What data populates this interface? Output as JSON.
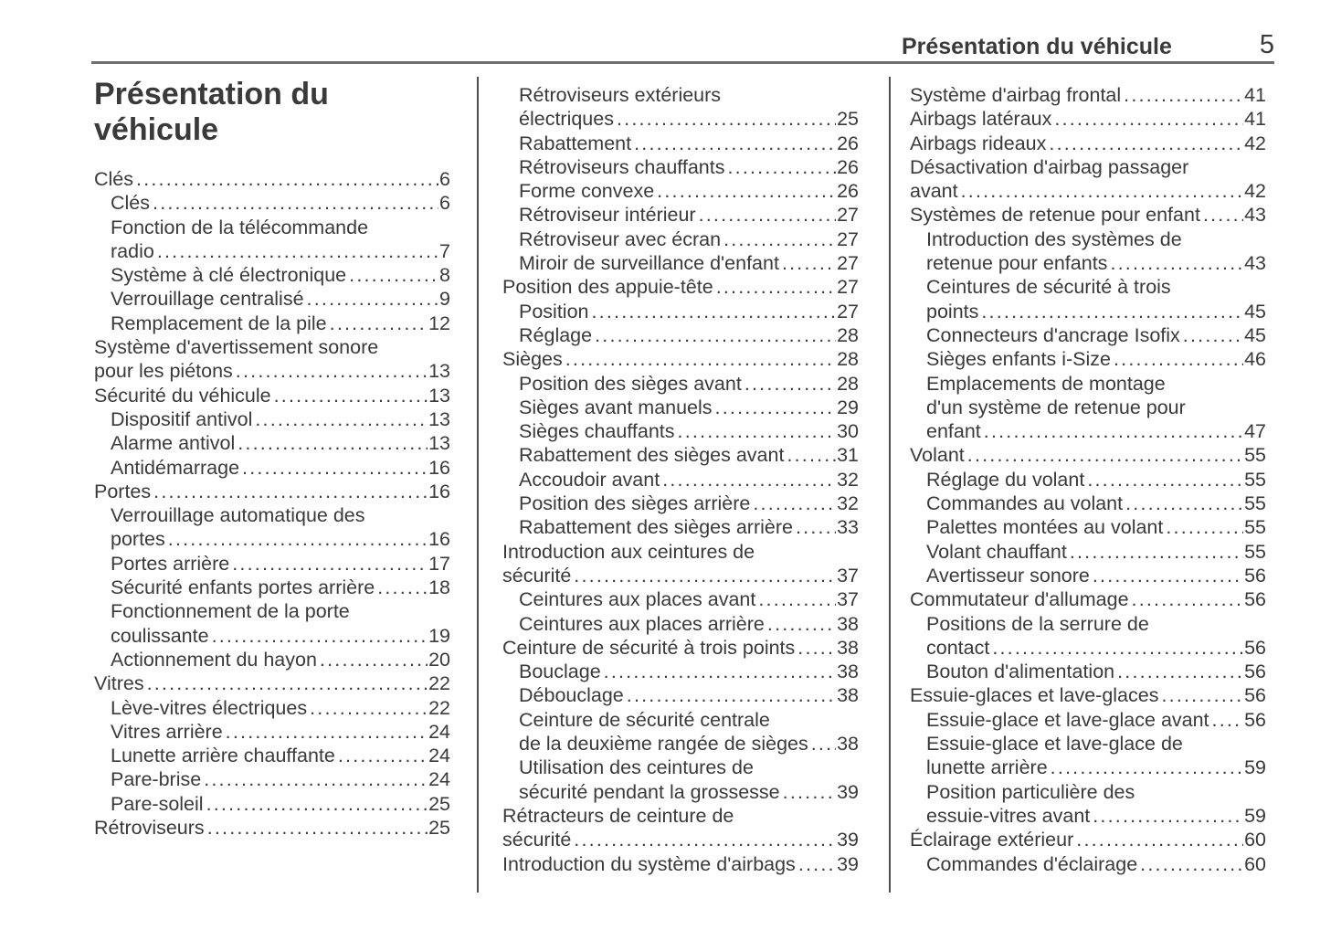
{
  "header": {
    "section_title": "Présentation du véhicule",
    "page_number": "5"
  },
  "chapter": {
    "title": "Présentation du véhicule"
  },
  "colors": {
    "text": "#3a3a3a",
    "header_rule": "#6f6f6f",
    "column_divider": "#4e4e4e",
    "background": "#ffffff"
  },
  "toc": {
    "columns": [
      {
        "entries": [
          {
            "lines": [
              "Clés"
            ],
            "page": "6",
            "level": 0
          },
          {
            "lines": [
              "Clés"
            ],
            "page": "6",
            "level": 1
          },
          {
            "lines": [
              "Fonction de la télécommande",
              "radio"
            ],
            "page": "7",
            "level": 1
          },
          {
            "lines": [
              "Système à clé électronique"
            ],
            "page": "8",
            "level": 1
          },
          {
            "lines": [
              "Verrouillage centralisé"
            ],
            "page": "9",
            "level": 1
          },
          {
            "lines": [
              "Remplacement de la pile"
            ],
            "page": "12",
            "level": 1
          },
          {
            "lines": [
              "Système d'avertissement sonore",
              "pour les piétons"
            ],
            "page": "13",
            "level": 0
          },
          {
            "lines": [
              "Sécurité du véhicule"
            ],
            "page": "13",
            "level": 0
          },
          {
            "lines": [
              "Dispositif antivol"
            ],
            "page": "13",
            "level": 1
          },
          {
            "lines": [
              "Alarme antivol"
            ],
            "page": "13",
            "level": 1
          },
          {
            "lines": [
              "Antidémarrage"
            ],
            "page": "16",
            "level": 1
          },
          {
            "lines": [
              "Portes"
            ],
            "page": "16",
            "level": 0
          },
          {
            "lines": [
              "Verrouillage automatique des",
              "portes"
            ],
            "page": "16",
            "level": 1
          },
          {
            "lines": [
              "Portes arrière"
            ],
            "page": "17",
            "level": 1
          },
          {
            "lines": [
              "Sécurité enfants portes arrière"
            ],
            "page": "18",
            "level": 1
          },
          {
            "lines": [
              "Fonctionnement de la porte",
              "coulissante"
            ],
            "page": "19",
            "level": 1
          },
          {
            "lines": [
              "Actionnement du hayon"
            ],
            "page": "20",
            "level": 1
          },
          {
            "lines": [
              "Vitres"
            ],
            "page": "22",
            "level": 0
          },
          {
            "lines": [
              "Lève-vitres électriques"
            ],
            "page": "22",
            "level": 1
          },
          {
            "lines": [
              "Vitres arrière"
            ],
            "page": "24",
            "level": 1
          },
          {
            "lines": [
              "Lunette arrière chauffante"
            ],
            "page": "24",
            "level": 1
          },
          {
            "lines": [
              "Pare-brise"
            ],
            "page": "24",
            "level": 1
          },
          {
            "lines": [
              "Pare-soleil"
            ],
            "page": "25",
            "level": 1
          },
          {
            "lines": [
              "Rétroviseurs"
            ],
            "page": "25",
            "level": 0
          }
        ]
      },
      {
        "entries": [
          {
            "lines": [
              "Rétroviseurs extérieurs",
              "électriques"
            ],
            "page": "25",
            "level": 1
          },
          {
            "lines": [
              "Rabattement"
            ],
            "page": "26",
            "level": 1
          },
          {
            "lines": [
              "Rétroviseurs chauffants"
            ],
            "page": "26",
            "level": 1
          },
          {
            "lines": [
              "Forme convexe"
            ],
            "page": "26",
            "level": 1
          },
          {
            "lines": [
              "Rétroviseur intérieur"
            ],
            "page": "27",
            "level": 1
          },
          {
            "lines": [
              "Rétroviseur avec écran"
            ],
            "page": "27",
            "level": 1
          },
          {
            "lines": [
              "Miroir de surveillance d'enfant"
            ],
            "page": "27",
            "level": 1
          },
          {
            "lines": [
              "Position des appuie-tête"
            ],
            "page": "27",
            "level": 0
          },
          {
            "lines": [
              "Position"
            ],
            "page": "27",
            "level": 1
          },
          {
            "lines": [
              "Réglage"
            ],
            "page": "28",
            "level": 1
          },
          {
            "lines": [
              "Sièges"
            ],
            "page": "28",
            "level": 0
          },
          {
            "lines": [
              "Position des sièges avant"
            ],
            "page": "28",
            "level": 1
          },
          {
            "lines": [
              "Sièges avant manuels"
            ],
            "page": "29",
            "level": 1
          },
          {
            "lines": [
              "Sièges chauffants"
            ],
            "page": "30",
            "level": 1
          },
          {
            "lines": [
              "Rabattement des sièges avant"
            ],
            "page": "31",
            "level": 1
          },
          {
            "lines": [
              "Accoudoir avant"
            ],
            "page": "32",
            "level": 1
          },
          {
            "lines": [
              "Position des sièges arrière"
            ],
            "page": "32",
            "level": 1
          },
          {
            "lines": [
              "Rabattement des sièges arrière"
            ],
            "page": "33",
            "level": 1
          },
          {
            "lines": [
              "Introduction aux ceintures de",
              "sécurité"
            ],
            "page": "37",
            "level": 0
          },
          {
            "lines": [
              "Ceintures aux places avant"
            ],
            "page": "37",
            "level": 1
          },
          {
            "lines": [
              "Ceintures aux places arrière"
            ],
            "page": "38",
            "level": 1
          },
          {
            "lines": [
              "Ceinture de sécurité à trois points"
            ],
            "page": "38",
            "level": 0
          },
          {
            "lines": [
              "Bouclage"
            ],
            "page": "38",
            "level": 1
          },
          {
            "lines": [
              "Débouclage"
            ],
            "page": "38",
            "level": 1
          },
          {
            "lines": [
              "Ceinture de sécurité centrale",
              "de la deuxième rangée de sièges"
            ],
            "page": "38",
            "level": 1
          },
          {
            "lines": [
              "Utilisation des ceintures de",
              "sécurité pendant la grossesse"
            ],
            "page": "39",
            "level": 1
          },
          {
            "lines": [
              "Rétracteurs de ceinture de",
              "sécurité"
            ],
            "page": "39",
            "level": 0
          },
          {
            "lines": [
              "Introduction du système d'airbags"
            ],
            "page": "39",
            "level": 0
          }
        ]
      },
      {
        "entries": [
          {
            "lines": [
              "Système d'airbag frontal"
            ],
            "page": "41",
            "level": 0
          },
          {
            "lines": [
              "Airbags latéraux"
            ],
            "page": "41",
            "level": 0
          },
          {
            "lines": [
              "Airbags rideaux"
            ],
            "page": "42",
            "level": 0
          },
          {
            "lines": [
              "Désactivation d'airbag passager",
              "avant"
            ],
            "page": "42",
            "level": 0
          },
          {
            "lines": [
              "Systèmes de retenue pour enfant"
            ],
            "page": "43",
            "level": 0
          },
          {
            "lines": [
              "Introduction des systèmes de",
              "retenue pour enfants"
            ],
            "page": "43",
            "level": 1
          },
          {
            "lines": [
              "Ceintures de sécurité à trois",
              "points"
            ],
            "page": "45",
            "level": 1
          },
          {
            "lines": [
              "Connecteurs d'ancrage Isofix"
            ],
            "page": "45",
            "level": 1
          },
          {
            "lines": [
              "Sièges enfants i-Size"
            ],
            "page": "46",
            "level": 1
          },
          {
            "lines": [
              "Emplacements de montage",
              "d'un système de retenue pour",
              "enfant"
            ],
            "page": "47",
            "level": 1
          },
          {
            "lines": [
              "Volant"
            ],
            "page": "55",
            "level": 0
          },
          {
            "lines": [
              "Réglage du volant"
            ],
            "page": "55",
            "level": 1
          },
          {
            "lines": [
              "Commandes au volant"
            ],
            "page": "55",
            "level": 1
          },
          {
            "lines": [
              "Palettes montées au volant"
            ],
            "page": "55",
            "level": 1
          },
          {
            "lines": [
              "Volant chauffant"
            ],
            "page": "55",
            "level": 1
          },
          {
            "lines": [
              "Avertisseur sonore"
            ],
            "page": "56",
            "level": 1
          },
          {
            "lines": [
              "Commutateur d'allumage"
            ],
            "page": "56",
            "level": 0
          },
          {
            "lines": [
              "Positions de la serrure de",
              "contact"
            ],
            "page": "56",
            "level": 1
          },
          {
            "lines": [
              "Bouton d'alimentation"
            ],
            "page": "56",
            "level": 1
          },
          {
            "lines": [
              "Essuie-glaces et lave-glaces"
            ],
            "page": "56",
            "level": 0
          },
          {
            "lines": [
              "Essuie-glace et lave-glace avant"
            ],
            "page": "56",
            "level": 1
          },
          {
            "lines": [
              "Essuie-glace et lave-glace de",
              "lunette arrière"
            ],
            "page": "59",
            "level": 1
          },
          {
            "lines": [
              "Position particulière des",
              "essuie-vitres avant"
            ],
            "page": "59",
            "level": 1
          },
          {
            "lines": [
              "Éclairage extérieur"
            ],
            "page": "60",
            "level": 0
          },
          {
            "lines": [
              "Commandes d'éclairage"
            ],
            "page": "60",
            "level": 1
          }
        ]
      }
    ]
  }
}
